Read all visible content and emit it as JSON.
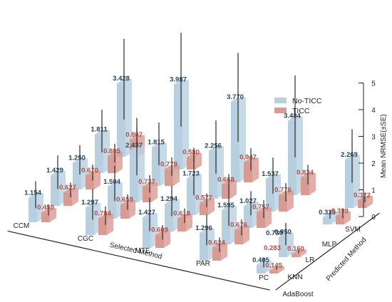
{
  "chart_data": {
    "type": "bar",
    "chart_style": "3d-grouped-bar-with-error-bars",
    "x_label": "Selected Method",
    "y_label": "Predicted Method",
    "z_label": "Mean NRMSE(±SE)",
    "x_categories": [
      "CCM",
      "CGC",
      "MTE",
      "PAR",
      "PC"
    ],
    "y_categories": [
      "AdaBoost",
      "KNN",
      "LR",
      "MLP",
      "SVM"
    ],
    "z_ticks": [
      0,
      1,
      2,
      3,
      4,
      5
    ],
    "z_range": [
      0,
      5
    ],
    "legend_position": "top-right",
    "series": [
      {
        "name": "No-TICC",
        "color": "#b8cfe0",
        "values": {
          "SVM": [
            3.428,
            3.987,
            3.77,
            3.484,
            2.269
          ],
          "MLP": [
            1.811,
            1.815,
            2.256,
            1.537,
            0.339
          ],
          "LR": [
            1.25,
            2.437,
            1.723,
            1.027,
            null
          ],
          "KNN": [
            1.429,
            1.504,
            1.294,
            1.595,
            0.95
          ],
          "AdaBoost": [
            1.154,
            1.297,
            1.427,
            1.296,
            0.405
          ]
        }
      },
      {
        "name": "TICC",
        "color": "#d99a92",
        "values": {
          "SVM": [
            0.807,
            0.58,
            0.947,
            0.834,
            0.372
          ],
          "MLP": [
            0.805,
            0.779,
            0.668,
            0.776,
            0.399
          ],
          "LR": [
            0.67,
            0.737,
            0.577,
            0.757,
            null
          ],
          "KNN": [
            0.627,
            0.659,
            0.618,
            0.676,
            0.16
          ],
          "AdaBoost": [
            0.459,
            0.784,
            0.609,
            0.624,
            0.145
          ]
        }
      }
    ],
    "extra_bars": [
      {
        "series": "No-TICC",
        "label": "0.739"
      },
      {
        "series": "TICC",
        "label": "0.283"
      }
    ]
  }
}
